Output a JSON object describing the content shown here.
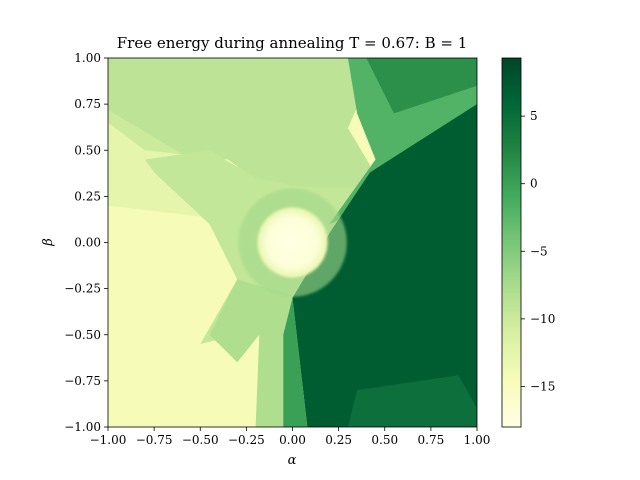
{
  "chart_data": {
    "type": "heatmap",
    "title": "Free energy during annealing T = 0.67:  B = 1",
    "xlabel": "α",
    "ylabel": "β",
    "xlim": [
      -1.0,
      1.0
    ],
    "ylim": [
      -1.0,
      1.0
    ],
    "x_ticks": [
      -1.0,
      -0.75,
      -0.5,
      -0.25,
      0.0,
      0.25,
      0.5,
      0.75,
      1.0
    ],
    "x_tick_labels": [
      "−1.00",
      "−0.75",
      "−0.50",
      "−0.25",
      "0.00",
      "0.25",
      "0.50",
      "0.75",
      "1.00"
    ],
    "y_ticks": [
      1.0,
      0.75,
      0.5,
      0.25,
      0.0,
      -0.25,
      -0.5,
      -0.75,
      -1.0
    ],
    "y_tick_labels": [
      "1.00",
      "0.75",
      "0.50",
      "0.25",
      "0.00",
      "−0.25",
      "−0.50",
      "−0.75",
      "−1.00"
    ],
    "colorbar": {
      "vmin": -18,
      "vmax": 9.3,
      "ticks": [
        5,
        0,
        -5,
        -10,
        -15
      ],
      "tick_labels": [
        "5",
        "0",
        "−5",
        "−10",
        "−15"
      ],
      "colormap": "YlGn"
    },
    "regions": [
      {
        "name": "low-left",
        "value": -14.5
      },
      {
        "name": "central-disc",
        "center": [
          0.0,
          0.0
        ],
        "radius": 0.19,
        "value": -17
      },
      {
        "name": "upper-left",
        "value": -9
      },
      {
        "name": "right-wedge",
        "value": 7
      }
    ]
  },
  "colors": {
    "cmap": [
      "#ffffe5",
      "#f7fcb9",
      "#d9f0a3",
      "#addd8e",
      "#78c679",
      "#41ab5d",
      "#238443",
      "#006837",
      "#004529"
    ]
  }
}
